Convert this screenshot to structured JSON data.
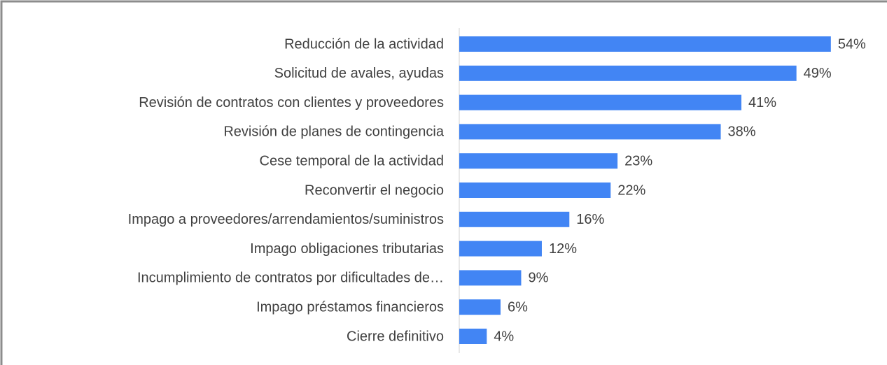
{
  "chart_data": {
    "type": "barh",
    "categories": [
      "Reducción de la actividad",
      "Solicitud de avales, ayudas",
      "Revisión de contratos con clientes y proveedores",
      "Revisión de planes de contingencia",
      "Cese temporal de la actividad",
      "Reconvertir el negocio",
      "Impago a proveedores/arrendamientos/suministros",
      "Impago obligaciones tributarias",
      "Incumplimiento de contratos por dificultades de…",
      "Impago préstamos financieros",
      "Cierre definitivo"
    ],
    "values": [
      54,
      49,
      41,
      38,
      23,
      22,
      16,
      12,
      9,
      6,
      4
    ],
    "value_labels": [
      "54%",
      "49%",
      "41%",
      "38%",
      "23%",
      "22%",
      "16%",
      "12%",
      "9%",
      "6%",
      "4%"
    ],
    "color": "#4285f4"
  }
}
